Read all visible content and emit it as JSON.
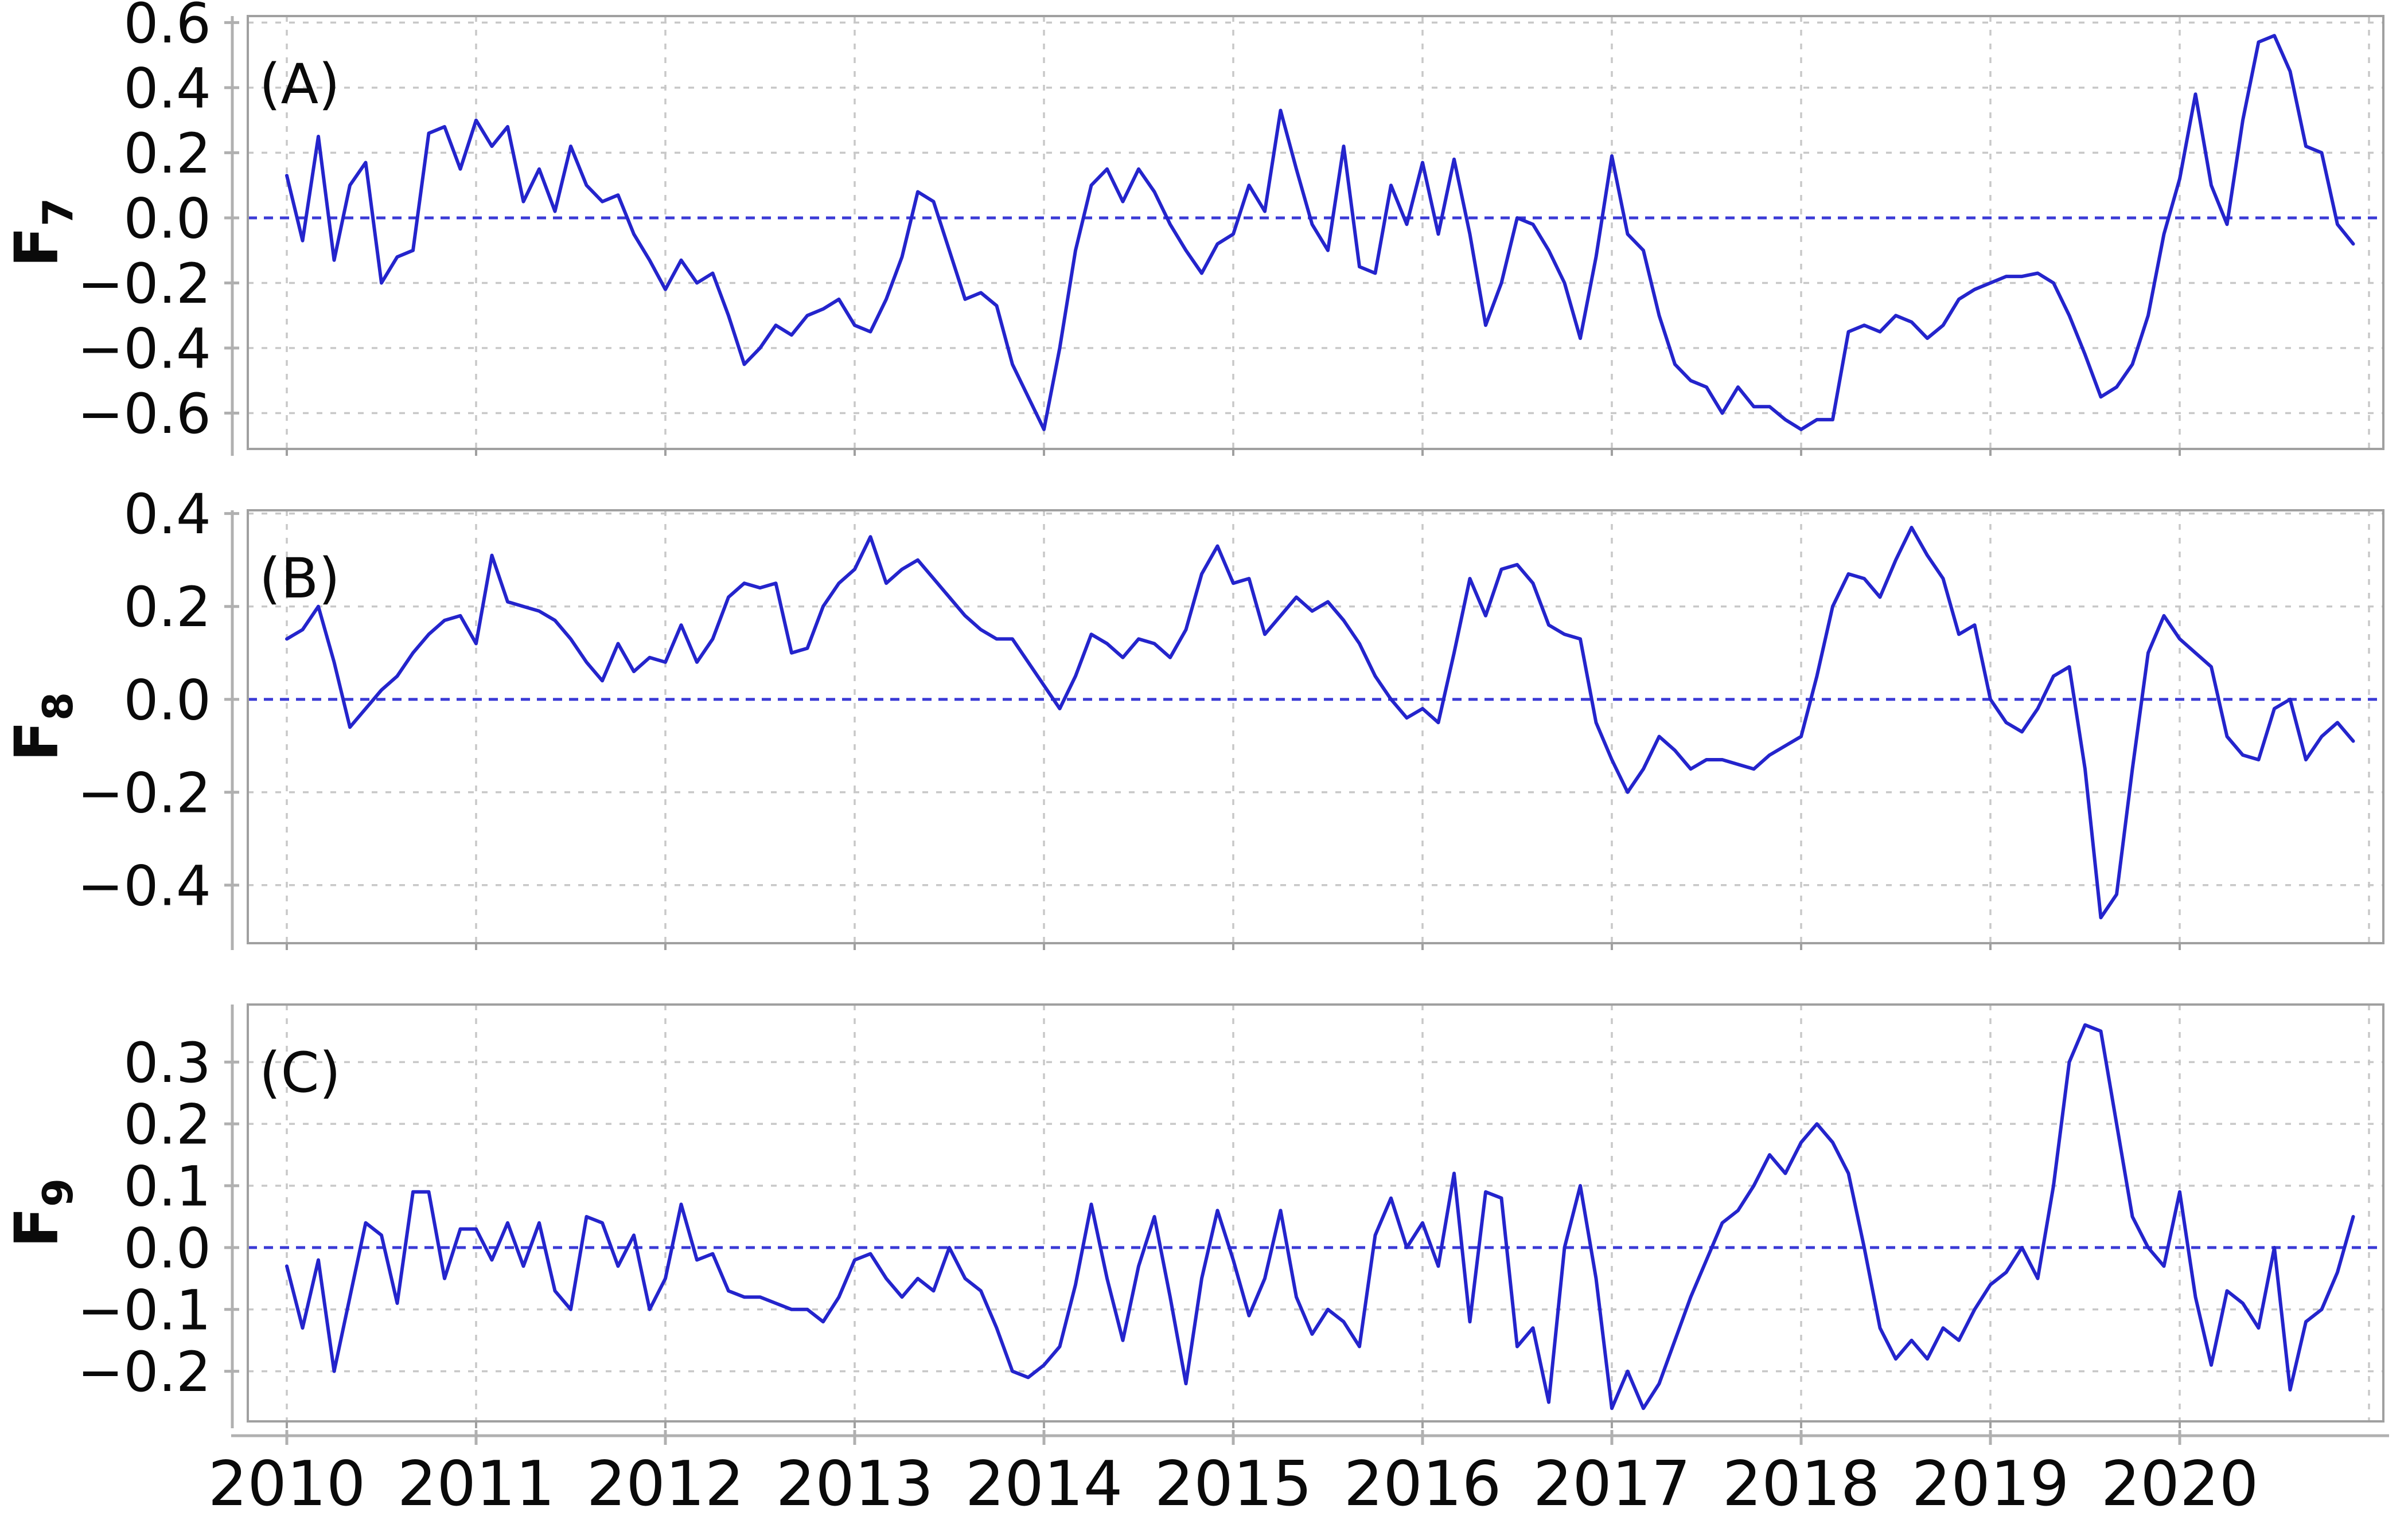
{
  "figure": {
    "background": "#ffffff",
    "line_color": "#2424cc",
    "zero_line_color": "#3b3bd6",
    "grid_color": "#c8c8c8",
    "spine_color": "#b0b0b0",
    "box_color": "#a0a0a0",
    "text_color": "#0a0a0a"
  },
  "x_axis": {
    "tick_labels": [
      "2010",
      "2011",
      "2012",
      "2013",
      "2014",
      "2015",
      "2016",
      "2017",
      "2018",
      "2019",
      "2020"
    ],
    "tick_years": [
      2010,
      2011,
      2012,
      2013,
      2014,
      2015,
      2016,
      2017,
      2018,
      2019,
      2020
    ],
    "gridline_years": [
      2010,
      2011,
      2012,
      2013,
      2014,
      2015,
      2016,
      2017,
      2018,
      2019,
      2020,
      2021
    ],
    "xlim": [
      2009.794,
      2021.076
    ]
  },
  "chart_data": [
    {
      "type": "line",
      "panel_label": "(A)",
      "ylabel_base": "F",
      "ylabel_sub": "7",
      "ylim": [
        -0.71,
        0.62
      ],
      "yticks": [
        0.6,
        0.4,
        0.2,
        0.0,
        -0.2,
        -0.4,
        -0.6
      ],
      "ytick_labels": [
        "0.6",
        "0.4",
        "0.2",
        "0.0",
        "−0.2",
        "−0.4",
        "−0.6"
      ],
      "zero_dashed_line": 0.0,
      "grid": true,
      "legend_position": "none",
      "x_start_year": 2010,
      "x_step_months": 1,
      "series": [
        {
          "name": "F7",
          "values": [
            0.13,
            -0.07,
            0.25,
            -0.13,
            0.1,
            0.17,
            -0.2,
            -0.12,
            -0.1,
            0.26,
            0.28,
            0.15,
            0.3,
            0.22,
            0.28,
            0.05,
            0.15,
            0.02,
            0.22,
            0.1,
            0.05,
            0.07,
            -0.05,
            -0.13,
            -0.22,
            -0.13,
            -0.2,
            -0.17,
            -0.3,
            -0.45,
            -0.4,
            -0.33,
            -0.36,
            -0.3,
            -0.28,
            -0.25,
            -0.33,
            -0.35,
            -0.25,
            -0.12,
            0.08,
            0.05,
            -0.1,
            -0.25,
            -0.23,
            -0.27,
            -0.45,
            -0.55,
            -0.65,
            -0.4,
            -0.1,
            0.1,
            0.15,
            0.05,
            0.15,
            0.08,
            -0.02,
            -0.1,
            -0.17,
            -0.08,
            -0.05,
            0.1,
            0.02,
            0.33,
            0.15,
            -0.02,
            -0.1,
            0.22,
            -0.15,
            -0.17,
            0.1,
            -0.02,
            0.17,
            -0.05,
            0.18,
            -0.05,
            -0.33,
            -0.2,
            0.0,
            -0.02,
            -0.1,
            -0.2,
            -0.37,
            -0.12,
            0.19,
            -0.05,
            -0.1,
            -0.3,
            -0.45,
            -0.5,
            -0.52,
            -0.6,
            -0.52,
            -0.58,
            -0.58,
            -0.62,
            -0.65,
            -0.62,
            -0.62,
            -0.35,
            -0.33,
            -0.35,
            -0.3,
            -0.32,
            -0.37,
            -0.33,
            -0.25,
            -0.22,
            -0.2,
            -0.18,
            -0.18,
            -0.17,
            -0.2,
            -0.3,
            -0.42,
            -0.55,
            -0.52,
            -0.45,
            -0.3,
            -0.05,
            0.12,
            0.38,
            0.1,
            -0.02,
            0.3,
            0.54,
            0.56,
            0.45,
            0.22,
            0.2,
            -0.02,
            -0.08
          ]
        }
      ]
    },
    {
      "type": "line",
      "panel_label": "(B)",
      "ylabel_base": "F",
      "ylabel_sub": "8",
      "ylim": [
        -0.525,
        0.407
      ],
      "yticks": [
        0.4,
        0.2,
        0.0,
        -0.2,
        -0.4
      ],
      "ytick_labels": [
        "0.4",
        "0.2",
        "0.0",
        "−0.2",
        "−0.4"
      ],
      "zero_dashed_line": 0.0,
      "grid": true,
      "legend_position": "none",
      "x_start_year": 2010,
      "x_step_months": 1,
      "series": [
        {
          "name": "F8",
          "values": [
            0.13,
            0.15,
            0.2,
            0.08,
            -0.06,
            -0.02,
            0.02,
            0.05,
            0.1,
            0.14,
            0.17,
            0.18,
            0.12,
            0.31,
            0.21,
            0.2,
            0.19,
            0.17,
            0.13,
            0.08,
            0.04,
            0.12,
            0.06,
            0.09,
            0.08,
            0.16,
            0.08,
            0.13,
            0.22,
            0.25,
            0.24,
            0.25,
            0.1,
            0.11,
            0.2,
            0.25,
            0.28,
            0.35,
            0.25,
            0.28,
            0.3,
            0.26,
            0.22,
            0.18,
            0.15,
            0.13,
            0.13,
            0.08,
            0.03,
            -0.02,
            0.05,
            0.14,
            0.12,
            0.09,
            0.13,
            0.12,
            0.09,
            0.15,
            0.27,
            0.33,
            0.25,
            0.26,
            0.14,
            0.18,
            0.22,
            0.19,
            0.21,
            0.17,
            0.12,
            0.05,
            0.0,
            -0.04,
            -0.02,
            -0.05,
            0.1,
            0.26,
            0.18,
            0.28,
            0.29,
            0.25,
            0.16,
            0.14,
            0.13,
            -0.05,
            -0.13,
            -0.2,
            -0.15,
            -0.08,
            -0.11,
            -0.15,
            -0.13,
            -0.13,
            -0.14,
            -0.15,
            -0.12,
            -0.1,
            -0.08,
            0.05,
            0.2,
            0.27,
            0.26,
            0.22,
            0.3,
            0.37,
            0.31,
            0.26,
            0.14,
            0.16,
            0.0,
            -0.05,
            -0.07,
            -0.02,
            0.05,
            0.07,
            -0.15,
            -0.47,
            -0.42,
            -0.15,
            0.1,
            0.18,
            0.13,
            0.1,
            0.07,
            -0.08,
            -0.12,
            -0.13,
            -0.02,
            0.0,
            -0.13,
            -0.08,
            -0.05,
            -0.09
          ]
        }
      ]
    },
    {
      "type": "line",
      "panel_label": "(C)",
      "ylabel_base": "F",
      "ylabel_sub": "9",
      "ylim": [
        -0.281,
        0.393
      ],
      "yticks": [
        0.3,
        0.2,
        0.1,
        0.0,
        -0.1,
        -0.2
      ],
      "ytick_labels": [
        "0.3",
        "0.2",
        "0.1",
        "0.0",
        "−0.1",
        "−0.2"
      ],
      "zero_dashed_line": 0.0,
      "grid": true,
      "legend_position": "none",
      "x_start_year": 2010,
      "x_step_months": 1,
      "series": [
        {
          "name": "F9",
          "values": [
            -0.03,
            -0.13,
            -0.02,
            -0.2,
            -0.08,
            0.04,
            0.02,
            -0.09,
            0.09,
            0.09,
            -0.05,
            0.03,
            0.03,
            -0.02,
            0.04,
            -0.03,
            0.04,
            -0.07,
            -0.1,
            0.05,
            0.04,
            -0.03,
            0.02,
            -0.1,
            -0.05,
            0.07,
            -0.02,
            -0.01,
            -0.07,
            -0.08,
            -0.08,
            -0.09,
            -0.1,
            -0.1,
            -0.12,
            -0.08,
            -0.02,
            -0.01,
            -0.05,
            -0.08,
            -0.05,
            -0.07,
            0.0,
            -0.05,
            -0.07,
            -0.13,
            -0.2,
            -0.21,
            -0.19,
            -0.16,
            -0.06,
            0.07,
            -0.05,
            -0.15,
            -0.03,
            0.05,
            -0.08,
            -0.22,
            -0.05,
            0.06,
            -0.02,
            -0.11,
            -0.05,
            0.06,
            -0.08,
            -0.14,
            -0.1,
            -0.12,
            -0.16,
            0.02,
            0.08,
            0.0,
            0.04,
            -0.03,
            0.12,
            -0.12,
            0.09,
            0.08,
            -0.16,
            -0.13,
            -0.25,
            0.0,
            0.1,
            -0.05,
            -0.26,
            -0.2,
            -0.26,
            -0.22,
            -0.15,
            -0.08,
            -0.02,
            0.04,
            0.06,
            0.1,
            0.15,
            0.12,
            0.17,
            0.2,
            0.17,
            0.12,
            0.0,
            -0.13,
            -0.18,
            -0.15,
            -0.18,
            -0.13,
            -0.15,
            -0.1,
            -0.06,
            -0.04,
            0.0,
            -0.05,
            0.1,
            0.3,
            0.36,
            0.35,
            0.2,
            0.05,
            0.0,
            -0.03,
            0.09,
            -0.08,
            -0.19,
            -0.07,
            -0.09,
            -0.13,
            0.0,
            -0.23,
            -0.12,
            -0.1,
            -0.04,
            0.05
          ]
        }
      ]
    }
  ]
}
